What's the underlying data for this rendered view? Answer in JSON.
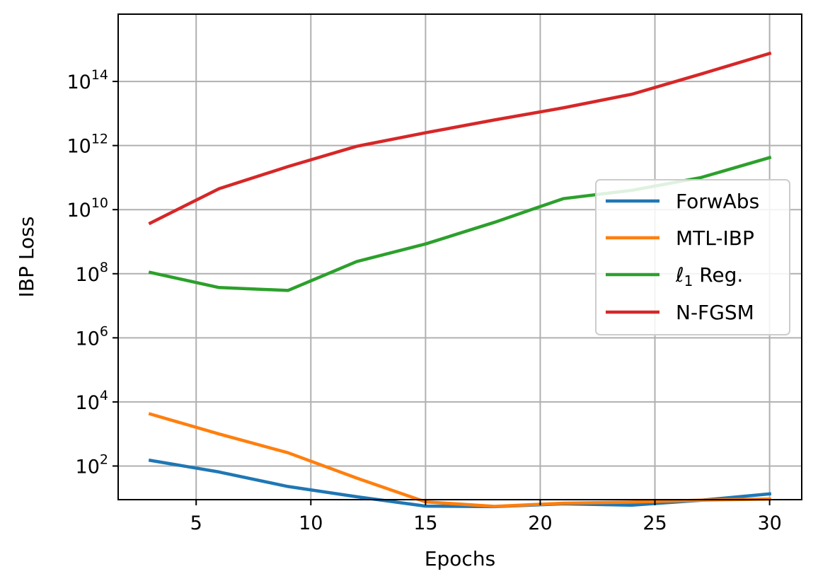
{
  "chart_data": {
    "type": "line",
    "xlabel": "Epochs",
    "ylabel": "IBP Loss",
    "xlim": [
      1.6,
      31.4
    ],
    "ylim_log10": [
      0.95,
      16.1
    ],
    "y_scale": "log",
    "grid": true,
    "legend_position": "center-right",
    "x_ticks": [
      5,
      10,
      15,
      20,
      25,
      30
    ],
    "y_ticks": [
      {
        "base": "10",
        "exp": "2",
        "log10": 2
      },
      {
        "base": "10",
        "exp": "4",
        "log10": 4
      },
      {
        "base": "10",
        "exp": "6",
        "log10": 6
      },
      {
        "base": "10",
        "exp": "8",
        "log10": 8
      },
      {
        "base": "10",
        "exp": "10",
        "log10": 10
      },
      {
        "base": "10",
        "exp": "12",
        "log10": 12
      },
      {
        "base": "10",
        "exp": "14",
        "log10": 14
      }
    ],
    "x": [
      3,
      6,
      9,
      12,
      15,
      18,
      21,
      24,
      27,
      30
    ],
    "series": [
      {
        "name": "ForwAbs",
        "color": "#1f77b4",
        "values": [
          150.0,
          65.0,
          23.0,
          11.0,
          5.6,
          5.4,
          6.6,
          6.0,
          8.5,
          13.5
        ]
      },
      {
        "name": "MTL-IBP",
        "color": "#ff7f0e",
        "values": [
          4200.0,
          1000.0,
          260.0,
          42.0,
          7.6,
          5.5,
          6.9,
          7.5,
          8.6,
          9.3
        ]
      },
      {
        "name_prefix": "ℓ",
        "name_sub": "1",
        "name_suffix": " Reg.",
        "color": "#2ca02c",
        "values": [
          110000000.0,
          37000000.0,
          30000000.0,
          240000000.0,
          850000000.0,
          4000000000.0,
          22000000000.0,
          40000000000.0,
          100000000000.0,
          420000000000.0
        ]
      },
      {
        "name": "N-FGSM",
        "color": "#d62728",
        "values": [
          3800000000.0,
          45000000000.0,
          220000000000.0,
          950000000000.0,
          2500000000000.0,
          6300000000000.0,
          15000000000000.0,
          40000000000000.0,
          170000000000000.0,
          750000000000000.0
        ]
      }
    ]
  }
}
